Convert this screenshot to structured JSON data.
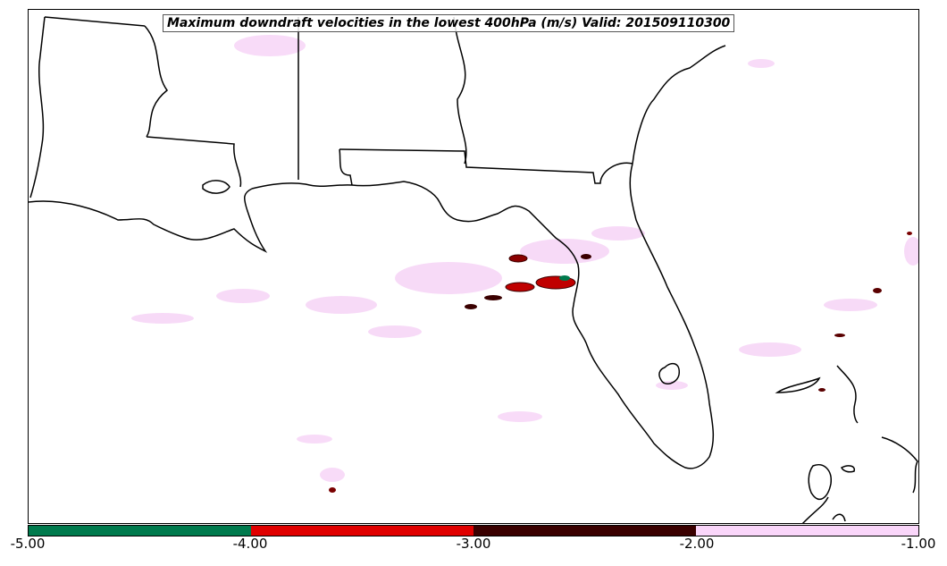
{
  "map": {
    "title": "Maximum downdraft velocities in the lowest 400hPa (m/s) Valid: 201509110300",
    "background_color": "#ffffff",
    "coastline_color": "#000000",
    "light_field_color": "#f7d7f7",
    "regions_shown": [
      "Louisiana",
      "Mississippi",
      "Alabama",
      "Georgia",
      "Florida",
      "Gulf of Mexico",
      "Bahamas"
    ]
  },
  "colorbar": {
    "colors": [
      "#007a4d",
      "#e00000",
      "#3a0000",
      "#fad6fa"
    ],
    "ticks": [
      "-5.00",
      "-4.00",
      "-3.00",
      "-2.00",
      "-1.00"
    ],
    "range": [
      -5.0,
      -1.0
    ]
  }
}
